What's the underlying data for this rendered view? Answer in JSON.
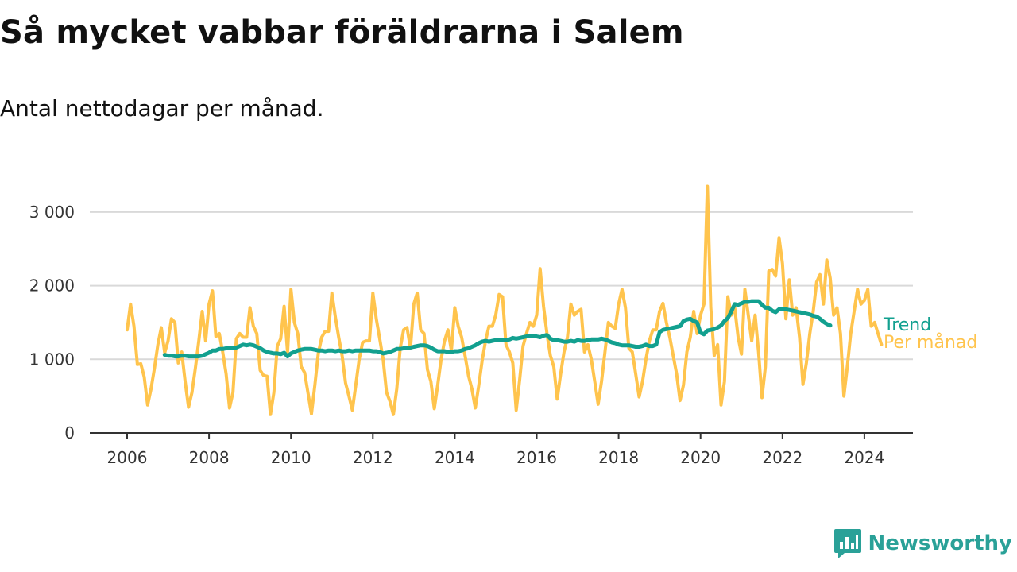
{
  "title": "Så mycket vabbar föräldrarna i Salem",
  "subtitle": "Antal nettodagar per månad.",
  "brand": {
    "name": "Newsworthy",
    "icon": "newsworthy-logo-icon"
  },
  "colors": {
    "monthly": "#ffc44d",
    "trend": "#12a08f",
    "grid": "#d9d9d9",
    "axis": "#333333"
  },
  "chart_data": {
    "type": "line",
    "title": "Så mycket vabbar föräldrarna i Salem",
    "subtitle": "Antal nettodagar per månad.",
    "xlabel": "",
    "ylabel": "",
    "xlim": [
      2005.7,
      2025.2
    ],
    "ylim": [
      0,
      3300
    ],
    "grid": true,
    "legend": "inline-right",
    "x_ticks": [
      2006,
      2008,
      2010,
      2012,
      2014,
      2016,
      2018,
      2020,
      2022,
      2024
    ],
    "y_ticks": [
      0,
      1000,
      2000,
      3000
    ],
    "y_tick_labels": [
      "0",
      "1 000",
      "2 000",
      "3 000"
    ],
    "series": [
      {
        "name": "Per månad",
        "start": 2006.0,
        "step": 0.0833333,
        "values": [
          1400,
          1750,
          1450,
          930,
          940,
          760,
          380,
          600,
          880,
          1200,
          1430,
          1090,
          1250,
          1550,
          1500,
          950,
          1100,
          700,
          350,
          550,
          880,
          1250,
          1650,
          1250,
          1750,
          1930,
          1310,
          1350,
          1100,
          800,
          340,
          550,
          1280,
          1350,
          1300,
          1300,
          1700,
          1450,
          1350,
          850,
          780,
          770,
          250,
          550,
          1180,
          1280,
          1720,
          1100,
          1950,
          1500,
          1350,
          900,
          820,
          540,
          260,
          650,
          1080,
          1300,
          1380,
          1380,
          1900,
          1580,
          1300,
          1050,
          680,
          500,
          310,
          650,
          1000,
          1230,
          1250,
          1250,
          1900,
          1550,
          1280,
          1000,
          550,
          430,
          250,
          600,
          1150,
          1400,
          1430,
          1150,
          1750,
          1900,
          1400,
          1350,
          860,
          700,
          330,
          650,
          1000,
          1250,
          1400,
          1120,
          1700,
          1450,
          1300,
          1050,
          780,
          600,
          340,
          640,
          980,
          1250,
          1450,
          1450,
          1600,
          1880,
          1850,
          1200,
          1100,
          950,
          310,
          720,
          1180,
          1350,
          1500,
          1450,
          1600,
          2230,
          1720,
          1350,
          1050,
          900,
          460,
          800,
          1100,
          1300,
          1750,
          1600,
          1650,
          1680,
          1100,
          1200,
          1000,
          700,
          390,
          700,
          1100,
          1500,
          1450,
          1420,
          1750,
          1950,
          1700,
          1150,
          1100,
          800,
          490,
          700,
          1000,
          1250,
          1400,
          1400,
          1650,
          1760,
          1500,
          1300,
          1050,
          800,
          440,
          650,
          1100,
          1300,
          1650,
          1350,
          1600,
          1750,
          3350,
          1700,
          1050,
          1200,
          380,
          700,
          1850,
          1600,
          1700,
          1300,
          1070,
          1950,
          1600,
          1250,
          1600,
          1100,
          480,
          900,
          2200,
          2220,
          2130,
          2650,
          2300,
          1550,
          2080,
          1600,
          1700,
          1300,
          660,
          950,
          1350,
          1650,
          2050,
          2150,
          1750,
          2350,
          2100,
          1600,
          1700,
          1350,
          500,
          900,
          1350,
          1650,
          1950,
          1750,
          1800,
          1950,
          1450,
          1500,
          1350,
          1200
        ]
      },
      {
        "name": "Trend",
        "start": 2006.917,
        "step": 0.0833333,
        "values": [
          1060,
          1050,
          1050,
          1040,
          1040,
          1050,
          1050,
          1040,
          1040,
          1040,
          1040,
          1050,
          1070,
          1090,
          1120,
          1120,
          1140,
          1140,
          1150,
          1160,
          1160,
          1160,
          1180,
          1200,
          1190,
          1200,
          1190,
          1170,
          1150,
          1120,
          1100,
          1090,
          1080,
          1080,
          1070,
          1090,
          1040,
          1080,
          1100,
          1120,
          1130,
          1140,
          1140,
          1140,
          1130,
          1120,
          1120,
          1110,
          1120,
          1120,
          1110,
          1120,
          1110,
          1110,
          1120,
          1110,
          1120,
          1120,
          1120,
          1120,
          1120,
          1110,
          1110,
          1100,
          1080,
          1090,
          1100,
          1120,
          1140,
          1140,
          1150,
          1160,
          1160,
          1170,
          1180,
          1190,
          1190,
          1180,
          1160,
          1130,
          1110,
          1110,
          1110,
          1100,
          1100,
          1110,
          1110,
          1120,
          1140,
          1150,
          1170,
          1190,
          1220,
          1240,
          1250,
          1240,
          1250,
          1260,
          1260,
          1260,
          1260,
          1270,
          1290,
          1280,
          1290,
          1300,
          1310,
          1320,
          1320,
          1310,
          1300,
          1320,
          1330,
          1280,
          1260,
          1260,
          1250,
          1240,
          1240,
          1250,
          1240,
          1260,
          1250,
          1250,
          1260,
          1270,
          1270,
          1270,
          1280,
          1270,
          1250,
          1230,
          1220,
          1200,
          1190,
          1190,
          1190,
          1180,
          1170,
          1170,
          1180,
          1200,
          1180,
          1180,
          1200,
          1370,
          1400,
          1410,
          1420,
          1430,
          1440,
          1450,
          1520,
          1540,
          1550,
          1520,
          1500,
          1360,
          1340,
          1390,
          1400,
          1410,
          1430,
          1460,
          1520,
          1560,
          1650,
          1750,
          1740,
          1760,
          1780,
          1780,
          1790,
          1790,
          1790,
          1740,
          1700,
          1700,
          1660,
          1640,
          1680,
          1680,
          1680,
          1670,
          1660,
          1650,
          1640,
          1630,
          1620,
          1610,
          1590,
          1580,
          1550,
          1510,
          1480,
          1460
        ]
      }
    ]
  }
}
